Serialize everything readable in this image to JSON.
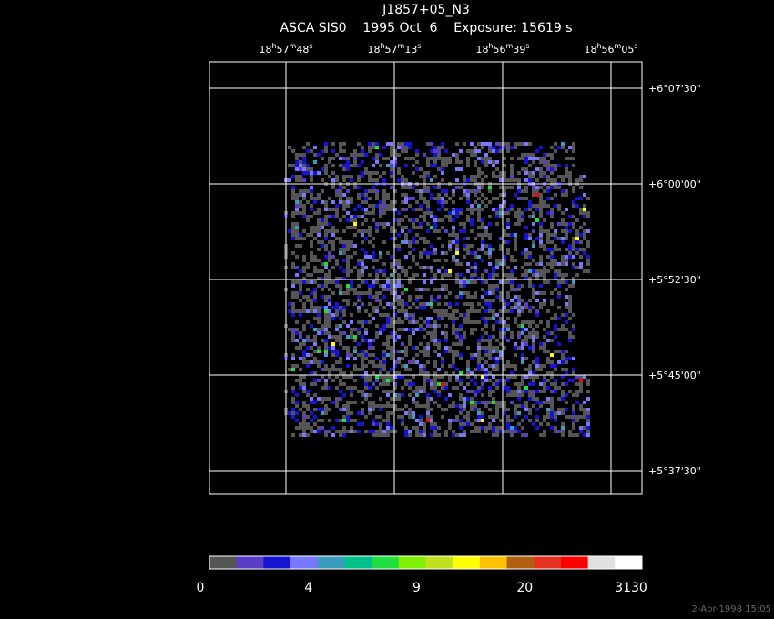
{
  "header": {
    "title": "J1857+05_N3",
    "subtitle": "ASCA SIS0    1995 Oct  6    Exposure: 15619 s"
  },
  "ra_labels": [
    [
      "18",
      "h",
      "57",
      "m",
      "48",
      "s"
    ],
    [
      "18",
      "h",
      "57",
      "m",
      "13",
      "s"
    ],
    [
      "18",
      "h",
      "56",
      "m",
      "39",
      "s"
    ],
    [
      "18",
      "h",
      "56",
      "m",
      "05",
      "s"
    ]
  ],
  "dec_labels": [
    "+6°07'30\"",
    "+6°00'00\"",
    "+5°52'30\"",
    "+5°45'00\"",
    "+5°37'30\""
  ],
  "colorbar": {
    "colors": [
      "#555555",
      "#5a3cc8",
      "#1414d2",
      "#7878ff",
      "#3c9cbe",
      "#00c08c",
      "#20e040",
      "#80f000",
      "#c0e020",
      "#ffff00",
      "#ffc000",
      "#b06010",
      "#e83020",
      "#ff0000",
      "#e0e0e0",
      "#ffffff"
    ],
    "labels": [
      "0",
      "4",
      "9",
      "20",
      "3130"
    ]
  },
  "footer": "2-Apr-1998 15:05"
}
